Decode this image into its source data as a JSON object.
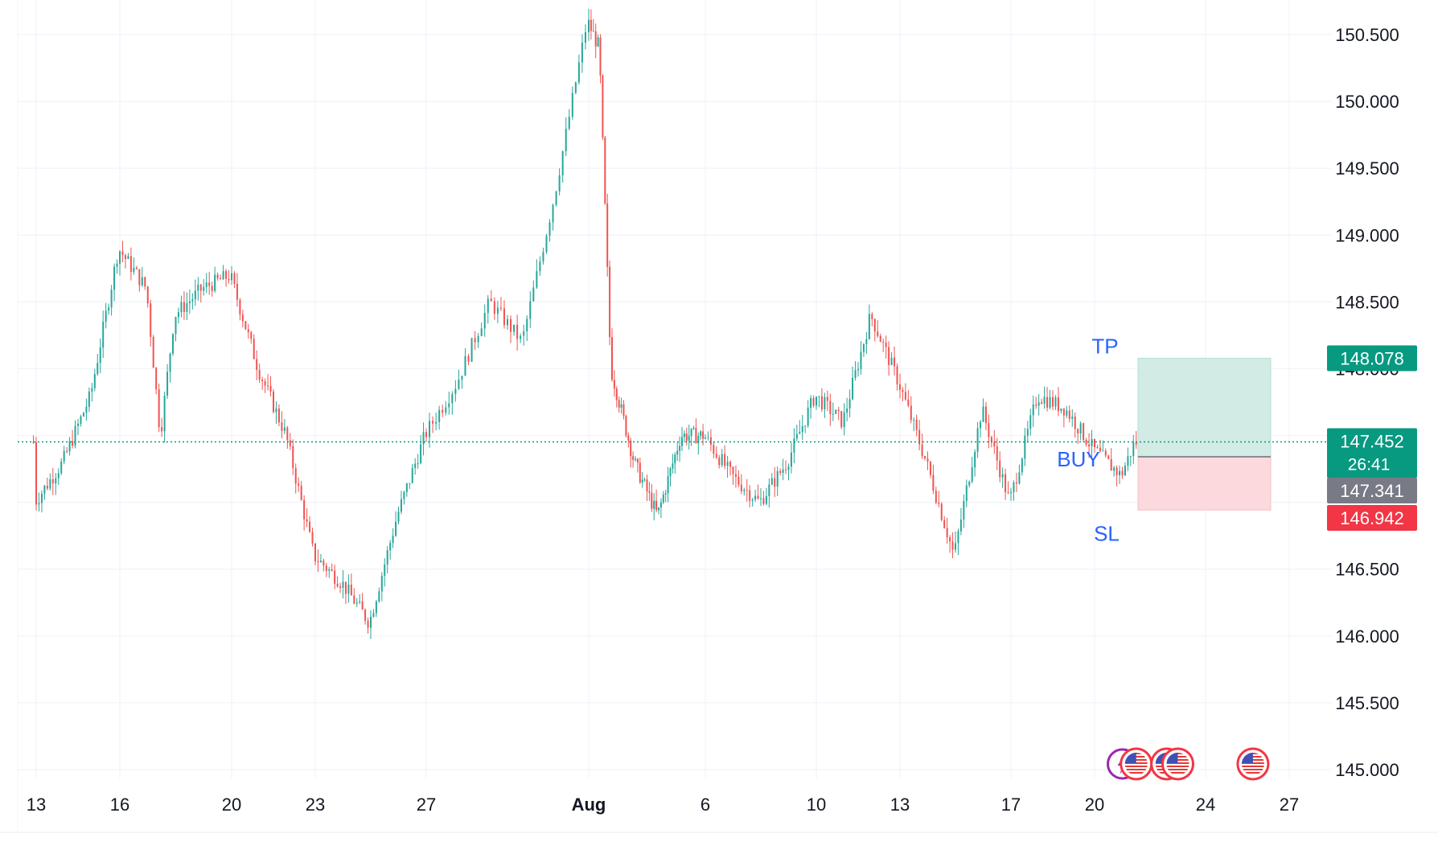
{
  "chart_data": {
    "type": "candlestick",
    "title": "",
    "xlabel": "",
    "ylabel": "",
    "x_ticks": [
      {
        "label": "13",
        "date": "Jul 13"
      },
      {
        "label": "16",
        "date": "Jul 16"
      },
      {
        "label": "20",
        "date": "Jul 20"
      },
      {
        "label": "23",
        "date": "Jul 23"
      },
      {
        "label": "27",
        "date": "Jul 27"
      },
      {
        "label": "Aug",
        "date": "Aug 1",
        "bold": true
      },
      {
        "label": "6",
        "date": "Aug 6"
      },
      {
        "label": "10",
        "date": "Aug 10"
      },
      {
        "label": "13",
        "date": "Aug 13"
      },
      {
        "label": "17",
        "date": "Aug 17"
      },
      {
        "label": "20",
        "date": "Aug 20"
      },
      {
        "label": "24",
        "date": "Aug 24"
      },
      {
        "label": "27",
        "date": "Aug 27"
      }
    ],
    "y_ticks": [
      "145.000",
      "145.500",
      "146.000",
      "146.500",
      "148.000",
      "148.500",
      "149.000",
      "149.500",
      "150.000",
      "150.500"
    ],
    "ylim": [
      144.98,
      150.75
    ],
    "grid": true,
    "price_path": [
      [
        "Jul 13",
        147.0
      ],
      [
        "Jul 14",
        147.3
      ],
      [
        "Jul 15",
        147.8
      ],
      [
        "Jul 16",
        148.9
      ],
      [
        "Jul 17",
        148.6
      ],
      [
        "Jul 17.5",
        147.5
      ],
      [
        "Jul 18",
        148.4
      ],
      [
        "Jul 19",
        148.6
      ],
      [
        "Jul 20",
        148.7
      ],
      [
        "Jul 21",
        148.0
      ],
      [
        "Jul 22",
        147.5
      ],
      [
        "Jul 23",
        146.6
      ],
      [
        "Jul 24",
        146.4
      ],
      [
        "Jul 25",
        146.1
      ],
      [
        "Jul 26",
        146.9
      ],
      [
        "Jul 27",
        147.5
      ],
      [
        "Jul 28",
        147.9
      ],
      [
        "Jul 29",
        148.5
      ],
      [
        "Jul 30",
        148.2
      ],
      [
        "Jul 31",
        149.3
      ],
      [
        "Aug 1",
        150.6
      ],
      [
        "Aug 1.5",
        150.4
      ],
      [
        "Aug 2",
        148.0
      ],
      [
        "Aug 3",
        147.3
      ],
      [
        "Aug 4",
        146.9
      ],
      [
        "Aug 5",
        147.5
      ],
      [
        "Aug 6",
        147.5
      ],
      [
        "Aug 7",
        147.2
      ],
      [
        "Aug 8",
        147.0
      ],
      [
        "Aug 9",
        147.3
      ],
      [
        "Aug 10",
        147.8
      ],
      [
        "Aug 11",
        147.6
      ],
      [
        "Aug 12",
        148.4
      ],
      [
        "Aug 13",
        147.9
      ],
      [
        "Aug 14",
        147.3
      ],
      [
        "Aug 15",
        146.6
      ],
      [
        "Aug 16",
        147.7
      ],
      [
        "Aug 17",
        147.0
      ],
      [
        "Aug 18",
        147.8
      ],
      [
        "Aug 19",
        147.7
      ],
      [
        "Aug 20",
        147.4
      ],
      [
        "Aug 21",
        147.2
      ],
      [
        "Aug 21.5",
        147.45
      ]
    ],
    "current_price": 147.452,
    "countdown": "26:41",
    "position": {
      "side": "BUY",
      "entry": 147.341,
      "take_profit": 148.078,
      "stop_loss": 146.942,
      "labels": {
        "tp": "TP",
        "buy": "BUY",
        "sl": "SL"
      }
    },
    "price_tags": [
      {
        "role": "take-profit",
        "value": "148.078"
      },
      {
        "role": "current",
        "value": "147.452"
      },
      {
        "role": "entry",
        "value": "147.341"
      },
      {
        "role": "stop-loss",
        "value": "146.942"
      }
    ],
    "events": [
      {
        "date": "Aug 21",
        "icon": "lightning-icon"
      },
      {
        "date": "Aug 21.5",
        "icon": "us-flag-icon"
      },
      {
        "date": "Aug 22.6",
        "icon": "us-flag-icon"
      },
      {
        "date": "Aug 23",
        "icon": "us-flag-icon"
      },
      {
        "date": "Aug 25.7",
        "icon": "us-flag-icon"
      }
    ],
    "colors": {
      "up": "#26a69a",
      "down": "#ef5350",
      "grid": "#f0f3fa",
      "axis_text": "#131722",
      "current_line": "#089981",
      "tp_zone": "#d2ebe5",
      "sl_zone": "#fcd9dd",
      "tp_tag": "#089981",
      "sl_tag": "#f23645",
      "entry_tag": "#787b86",
      "position_label": "#2962ff"
    }
  }
}
